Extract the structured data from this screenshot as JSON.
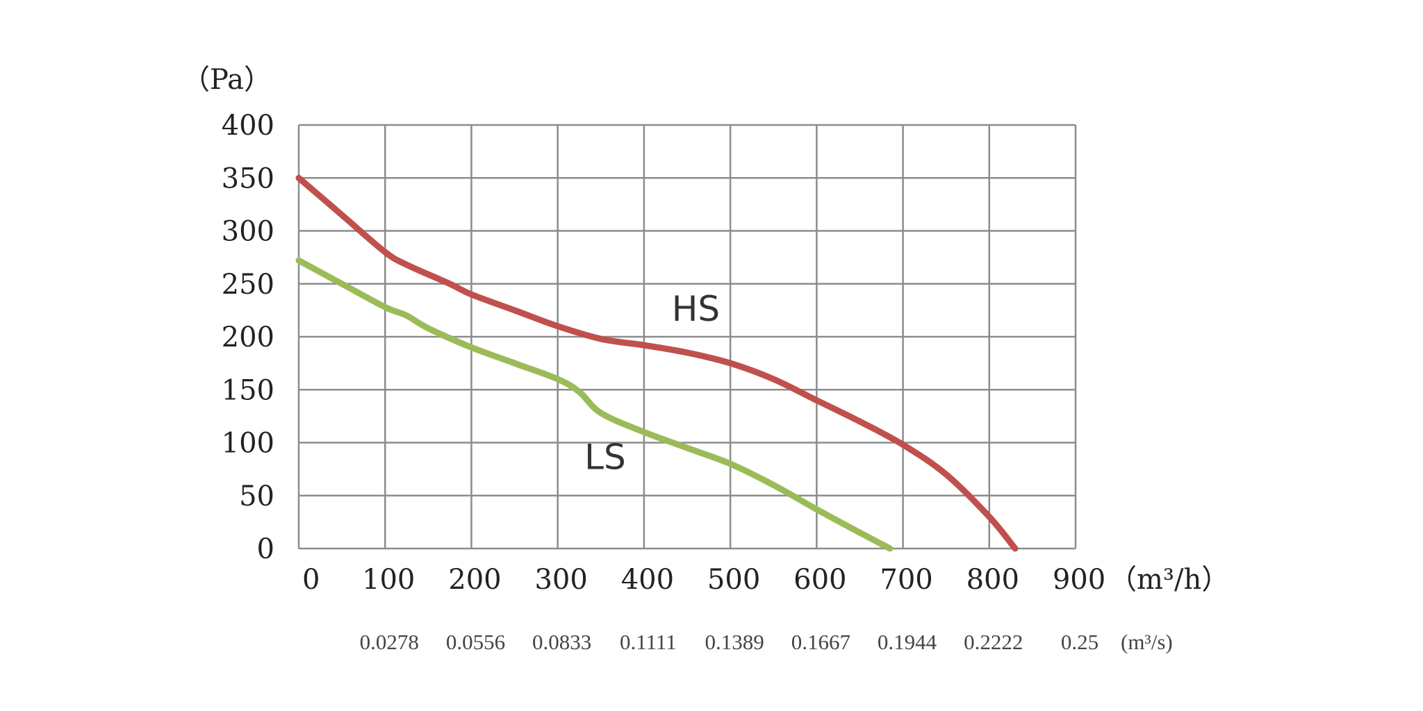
{
  "chart_data": {
    "type": "line",
    "y_unit_label": "（Pa）",
    "x_unit_label": "（m³/h）",
    "secondary_x_unit_label": "(m³/s)",
    "xlim": [
      0,
      900
    ],
    "ylim": [
      0,
      400
    ],
    "x_ticks": [
      0,
      100,
      200,
      300,
      400,
      500,
      600,
      700,
      800,
      900
    ],
    "x_tick_labels": [
      "0",
      "100",
      "200",
      "300",
      "400",
      "500",
      "600",
      "700",
      "800",
      "900"
    ],
    "y_ticks": [
      0,
      50,
      100,
      150,
      200,
      250,
      300,
      350,
      400
    ],
    "y_tick_labels": [
      "0",
      "50",
      "100",
      "150",
      "200",
      "250",
      "300",
      "350",
      "400"
    ],
    "secondary_x_ticks": [
      100,
      200,
      300,
      400,
      500,
      600,
      700,
      800,
      900
    ],
    "secondary_x_tick_labels": [
      "0.0278",
      "0.0556",
      "0.0833",
      "0.1111",
      "0.1389",
      "0.1667",
      "0.1944",
      "0.2222",
      "0.25"
    ],
    "grid": true,
    "series": [
      {
        "name": "HS",
        "color": "#c0504d",
        "x": [
          0,
          50,
          100,
          125,
          175,
          200,
          250,
          300,
          350,
          400,
          450,
          500,
          550,
          600,
          650,
          700,
          750,
          800,
          830
        ],
        "y": [
          350,
          315,
          280,
          268,
          250,
          240,
          225,
          210,
          198,
          192,
          185,
          175,
          160,
          140,
          120,
          98,
          70,
          30,
          0
        ]
      },
      {
        "name": "LS",
        "color": "#9bbb59",
        "x": [
          0,
          50,
          100,
          125,
          150,
          200,
          250,
          300,
          325,
          350,
          400,
          450,
          500,
          550,
          600,
          650,
          685
        ],
        "y": [
          272,
          250,
          228,
          220,
          208,
          190,
          175,
          160,
          148,
          128,
          110,
          95,
          80,
          60,
          37,
          15,
          0
        ]
      }
    ],
    "series_label_positions": [
      {
        "name": "HS",
        "x": 460,
        "y": 215
      },
      {
        "name": "LS",
        "x": 355,
        "y": 75
      }
    ]
  }
}
